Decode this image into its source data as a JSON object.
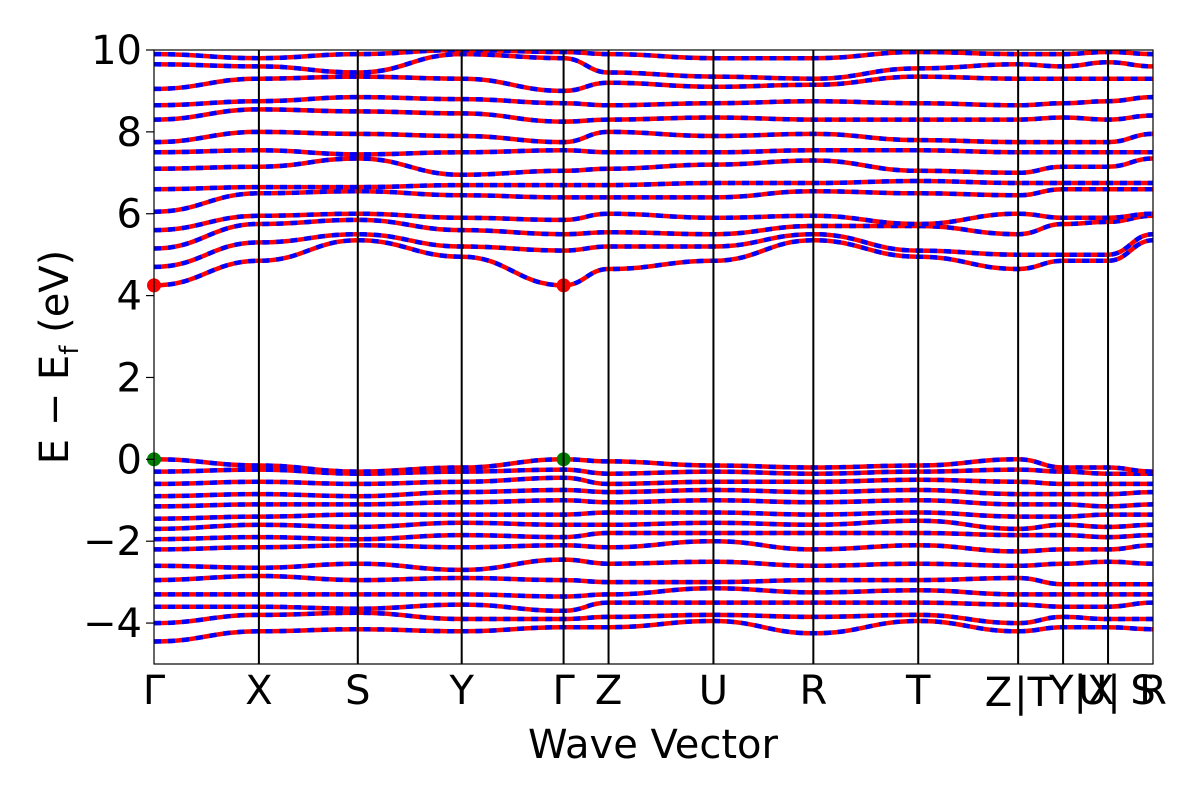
{
  "chart_data": {
    "type": "line",
    "title": "",
    "xlabel": "Wave Vector",
    "ylabel_parts": [
      "E − E",
      "f",
      " (eV)"
    ],
    "ylim": [
      -5,
      10
    ],
    "yticks": [
      "−4",
      "−2",
      "0",
      "2",
      "4",
      "6",
      "8",
      "10"
    ],
    "ytick_values": [
      -4,
      -2,
      0,
      2,
      4,
      6,
      8,
      10
    ],
    "grid": false,
    "legend": "none",
    "colors": {
      "series_a": "#ff0000",
      "series_b": "#0000ff",
      "vbm_marker": "#008000",
      "cbm_marker": "#ff0000",
      "kpath_lines": "#000000"
    },
    "kpath": {
      "labels": [
        "Γ",
        "X",
        "S",
        "Y",
        "Γ",
        "Z",
        "U",
        "R",
        "T",
        "Z",
        "|T",
        "Y|X",
        "U|",
        "S",
        "R"
      ],
      "positions": [
        0.0,
        0.105,
        0.204,
        0.308,
        0.41,
        0.455,
        0.56,
        0.66,
        0.765,
        0.865,
        0.865,
        0.91,
        0.955,
        0.99,
        1.0
      ],
      "boundaries": [
        0.0,
        0.105,
        0.204,
        0.308,
        0.41,
        0.455,
        0.56,
        0.66,
        0.765,
        0.865,
        0.91,
        0.955,
        1.0
      ]
    },
    "markers": [
      {
        "name": "VBM",
        "x": 0.0,
        "y": 0.0,
        "color": "green"
      },
      {
        "name": "VBM",
        "x": 0.41,
        "y": 0.0,
        "color": "green"
      },
      {
        "name": "CBM",
        "x": 0.0,
        "y": 4.25,
        "color": "red"
      },
      {
        "name": "CBM",
        "x": 0.41,
        "y": 4.25,
        "color": "red"
      }
    ],
    "series": [
      {
        "style": "overlaid red solid / blue dashed (spin up / spin down, identical)",
        "bands": [
          [
            -4.45,
            -4.2,
            -4.15,
            -4.2,
            -4.1,
            -4.1,
            -3.95,
            -4.25,
            -3.95,
            -4.2,
            -4.1,
            -4.1,
            -4.15
          ],
          [
            -4.0,
            -3.8,
            -3.75,
            -3.9,
            -3.9,
            -3.85,
            -3.8,
            -3.85,
            -3.8,
            -4.0,
            -3.85,
            -3.9,
            -3.9
          ],
          [
            -3.6,
            -3.6,
            -3.65,
            -3.55,
            -3.7,
            -3.5,
            -3.5,
            -3.5,
            -3.5,
            -3.55,
            -3.6,
            -3.6,
            -3.5
          ],
          [
            -3.3,
            -3.3,
            -3.3,
            -3.3,
            -3.35,
            -3.3,
            -3.15,
            -3.25,
            -3.2,
            -3.3,
            -3.3,
            -3.3,
            -3.3
          ],
          [
            -2.95,
            -2.85,
            -2.95,
            -2.9,
            -2.95,
            -3.0,
            -3.0,
            -2.95,
            -2.95,
            -2.9,
            -3.05,
            -3.05,
            -3.05
          ],
          [
            -2.6,
            -2.65,
            -2.55,
            -2.7,
            -2.45,
            -2.55,
            -2.5,
            -2.6,
            -2.55,
            -2.6,
            -2.55,
            -2.5,
            -2.55
          ],
          [
            -2.2,
            -2.15,
            -2.1,
            -2.15,
            -2.1,
            -2.15,
            -2.0,
            -2.2,
            -2.1,
            -2.25,
            -2.2,
            -2.2,
            -2.1
          ],
          [
            -1.95,
            -1.9,
            -1.95,
            -1.85,
            -1.9,
            -1.8,
            -1.8,
            -1.8,
            -1.8,
            -1.85,
            -1.85,
            -1.9,
            -1.85
          ],
          [
            -1.7,
            -1.6,
            -1.65,
            -1.55,
            -1.6,
            -1.6,
            -1.55,
            -1.6,
            -1.5,
            -1.7,
            -1.6,
            -1.65,
            -1.6
          ],
          [
            -1.45,
            -1.4,
            -1.35,
            -1.35,
            -1.35,
            -1.3,
            -1.3,
            -1.35,
            -1.3,
            -1.4,
            -1.4,
            -1.35,
            -1.35
          ],
          [
            -1.15,
            -1.1,
            -1.1,
            -1.05,
            -1.0,
            -1.05,
            -1.0,
            -1.05,
            -1.0,
            -1.1,
            -1.1,
            -1.15,
            -1.1
          ],
          [
            -0.9,
            -0.85,
            -0.9,
            -0.8,
            -0.75,
            -0.8,
            -0.75,
            -0.8,
            -0.75,
            -0.85,
            -0.85,
            -0.85,
            -0.8
          ],
          [
            -0.6,
            -0.55,
            -0.6,
            -0.55,
            -0.45,
            -0.6,
            -0.55,
            -0.55,
            -0.5,
            -0.55,
            -0.6,
            -0.6,
            -0.6
          ],
          [
            -0.3,
            -0.25,
            -0.35,
            -0.3,
            -0.25,
            -0.35,
            -0.3,
            -0.35,
            -0.3,
            -0.25,
            -0.3,
            -0.35,
            -0.35
          ],
          [
            0.0,
            -0.15,
            -0.3,
            -0.2,
            0.0,
            -0.05,
            -0.15,
            -0.2,
            -0.15,
            0.0,
            -0.2,
            -0.2,
            -0.3
          ],
          [
            4.25,
            4.85,
            5.35,
            4.95,
            4.25,
            4.65,
            4.85,
            5.35,
            4.95,
            4.65,
            4.85,
            4.85,
            5.35
          ],
          [
            4.7,
            5.3,
            5.5,
            5.2,
            5.1,
            5.2,
            5.2,
            5.5,
            5.1,
            5.0,
            5.0,
            5.0,
            5.5
          ],
          [
            5.15,
            5.75,
            5.85,
            5.6,
            5.5,
            5.55,
            5.5,
            5.7,
            5.7,
            5.5,
            5.75,
            5.8,
            5.95
          ],
          [
            5.6,
            5.95,
            6.0,
            5.9,
            5.85,
            6.0,
            5.9,
            5.95,
            5.75,
            6.0,
            5.9,
            5.9,
            6.0
          ],
          [
            6.05,
            6.5,
            6.55,
            6.45,
            6.4,
            6.4,
            6.4,
            6.55,
            6.5,
            6.45,
            6.6,
            6.6,
            6.6
          ],
          [
            6.6,
            6.65,
            6.65,
            6.7,
            6.7,
            6.7,
            6.75,
            6.75,
            6.8,
            6.75,
            6.75,
            6.75,
            6.75
          ],
          [
            7.1,
            7.15,
            7.35,
            6.95,
            7.05,
            7.1,
            7.2,
            7.3,
            7.05,
            7.0,
            7.15,
            7.15,
            7.35
          ],
          [
            7.5,
            7.55,
            7.45,
            7.5,
            7.55,
            7.5,
            7.5,
            7.55,
            7.55,
            7.5,
            7.5,
            7.5,
            7.5
          ],
          [
            7.75,
            8.0,
            7.95,
            7.9,
            7.75,
            8.0,
            7.9,
            7.95,
            7.8,
            7.75,
            7.75,
            7.75,
            7.95
          ],
          [
            8.3,
            8.55,
            8.5,
            8.45,
            8.25,
            8.3,
            8.35,
            8.3,
            8.3,
            8.3,
            8.35,
            8.3,
            8.4
          ],
          [
            8.65,
            8.75,
            8.85,
            8.8,
            8.7,
            8.65,
            8.7,
            8.75,
            8.7,
            8.65,
            8.7,
            8.75,
            8.85
          ],
          [
            9.05,
            9.3,
            9.35,
            9.3,
            9.0,
            9.2,
            9.1,
            9.15,
            9.35,
            9.3,
            9.3,
            9.3,
            9.3
          ],
          [
            9.65,
            9.6,
            9.45,
            9.9,
            9.8,
            9.45,
            9.35,
            9.3,
            9.55,
            9.65,
            9.6,
            9.7,
            9.6
          ],
          [
            9.9,
            9.8,
            9.9,
            10.0,
            9.95,
            9.9,
            9.8,
            9.8,
            9.95,
            9.9,
            9.9,
            9.95,
            9.9
          ]
        ]
      }
    ]
  }
}
